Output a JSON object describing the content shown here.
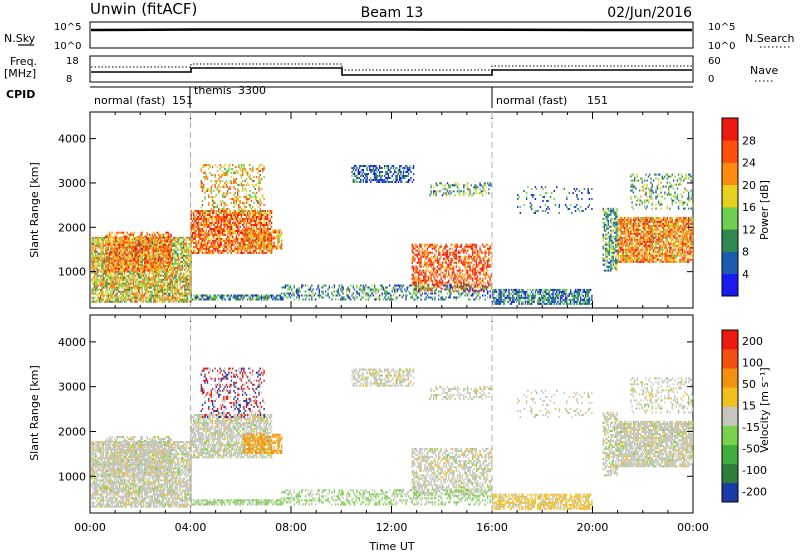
{
  "header": {
    "station": "Unwin (fitACF)",
    "beam": "Beam 13",
    "date": "02/Jun/2016"
  },
  "sky_panel": {
    "left_label": "N.Sky",
    "right_label": "N.Search",
    "ticks": [
      "10^5",
      "10^0"
    ]
  },
  "freq_panel": {
    "left_label_1": "Freq.",
    "left_label_2": "[MHz]",
    "right_label": "Nave",
    "left_ticks": [
      "18",
      "8"
    ],
    "right_ticks": [
      "60",
      "0"
    ]
  },
  "cpid": {
    "label": "CPID",
    "segments": [
      {
        "name": "normal (fast)",
        "id": "151",
        "start": 0,
        "end": 4
      },
      {
        "name": "themis",
        "id": "3300",
        "start": 4,
        "end": 16
      },
      {
        "name": "normal (fast)",
        "id": "151",
        "start": 16,
        "end": 24
      }
    ]
  },
  "chart_data": [
    {
      "type": "heatmap",
      "name": "power",
      "ylabel": "Slant Range [km]",
      "yticks": [
        1000,
        2000,
        3000,
        4000
      ],
      "ylim": [
        180,
        4600
      ],
      "xlim": [
        0,
        24
      ],
      "colorbar_label": "Power [dB]",
      "colorbar_ticks": [
        "4",
        "8",
        "12",
        "16",
        "20",
        "24",
        "28"
      ],
      "colors": [
        "#1a1aee",
        "#1c5cb0",
        "#2f8a4f",
        "#6fcf50",
        "#e8d020",
        "#ff8c10",
        "#ff5010",
        "#ee1a10"
      ]
    },
    {
      "type": "heatmap",
      "name": "velocity",
      "ylabel": "Slant Range [km]",
      "yticks": [
        1000,
        2000,
        3000,
        4000
      ],
      "ylim": [
        180,
        4600
      ],
      "xlim": [
        0,
        24
      ],
      "xlabel": "Time UT",
      "xticks": [
        "00:00",
        "04:00",
        "08:00",
        "12:00",
        "16:00",
        "20:00",
        "00:00"
      ],
      "colorbar_label": "Velocity [m s⁻¹]",
      "colorbar_ticks": [
        "200",
        "100",
        "50",
        "15",
        "-15",
        "-50",
        "-100",
        "-200"
      ],
      "colors": [
        "#1a3aaa",
        "#2e7d3a",
        "#3fae3f",
        "#7ad24a",
        "#c6c6be",
        "#f2bf20",
        "#f29010",
        "#f25010",
        "#ee1a10"
      ]
    }
  ]
}
